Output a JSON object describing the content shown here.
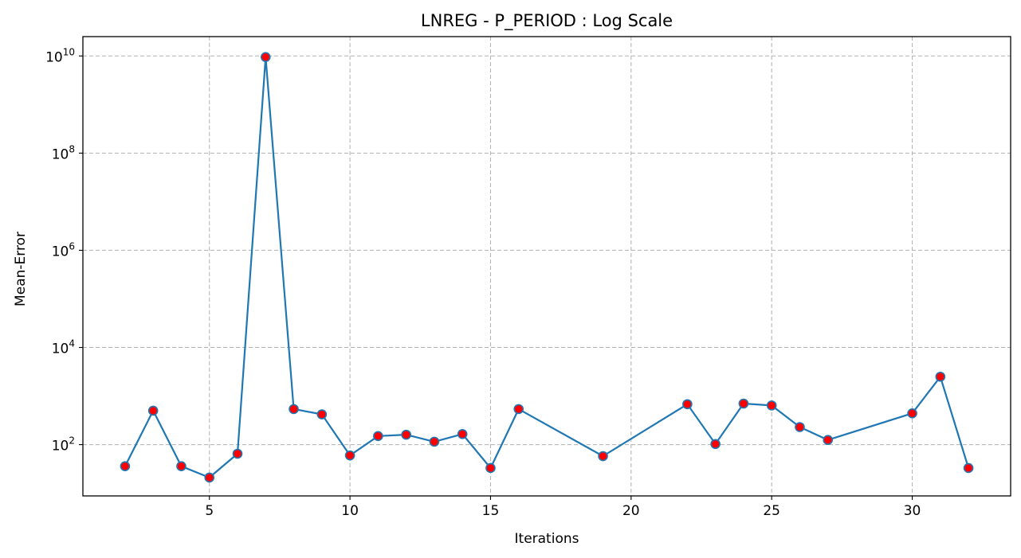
{
  "chart_data": {
    "type": "line",
    "title": "LNREG - P_PERIOD : Log Scale",
    "xlabel": "Iterations",
    "ylabel": "Mean-Error",
    "yscale": "log",
    "grid": true,
    "xlim": [
      0.5,
      33.5
    ],
    "ylim": [
      8.8,
      25000000000
    ],
    "x_ticks": [
      5,
      10,
      15,
      20,
      25,
      30
    ],
    "y_ticks": [
      {
        "value": 100,
        "base": "10",
        "exp": "2"
      },
      {
        "value": 10000,
        "base": "10",
        "exp": "4"
      },
      {
        "value": 1000000,
        "base": "10",
        "exp": "6"
      },
      {
        "value": 100000000,
        "base": "10",
        "exp": "8"
      },
      {
        "value": 10000000000,
        "base": "10",
        "exp": "10"
      }
    ],
    "line_color": "#1f77b4",
    "marker_color": "#ff0000",
    "series": [
      {
        "x": [
          2,
          3,
          4,
          5,
          6,
          7,
          8,
          9,
          10,
          11,
          12,
          13,
          14,
          15,
          16,
          19,
          22,
          23,
          24,
          25,
          26,
          27,
          30,
          31,
          32
        ],
        "values": [
          36,
          500,
          36,
          21,
          65,
          9500000000,
          540,
          420,
          60,
          150,
          160,
          115,
          165,
          33,
          540,
          58,
          680,
          103,
          700,
          640,
          230,
          125,
          440,
          2500,
          33
        ]
      }
    ]
  }
}
